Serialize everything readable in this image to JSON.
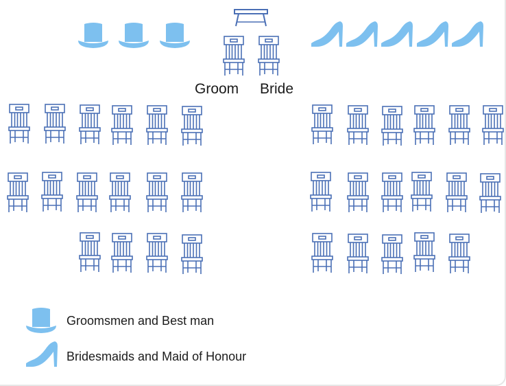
{
  "couple": {
    "groom_label": "Groom",
    "bride_label": "Bride"
  },
  "legend": {
    "groomsmen_label": "Groomsmen and Best man",
    "bridesmaids_label": "Bridesmaids and Maid of Honour",
    "groomsmen_icon": "top-hat-icon",
    "bridesmaids_icon": "high-heel-icon"
  },
  "counts": {
    "groomsmen": 3,
    "bridesmaids": 5,
    "guest_chairs_left": 16,
    "guest_chairs_right": 17
  },
  "colors": {
    "accent": "#7dc0ef",
    "chair_stroke": "#4a6fb5",
    "text": "#1b1b1b"
  }
}
